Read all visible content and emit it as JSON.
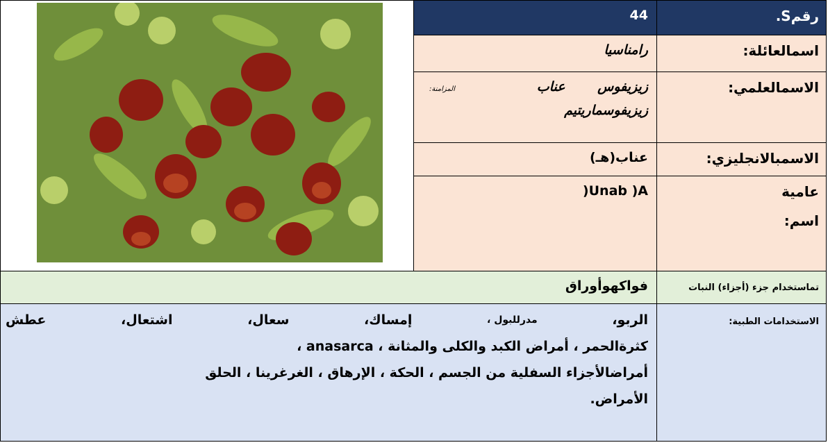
{
  "table": {
    "number_label": "رقمS.",
    "number_value": "44",
    "family_label": "اسمالعائلة:",
    "family_value": "رامناسيا",
    "scientific_label": "الاسمالعلمي:",
    "scientific_value_1": "زيزيفوس عناب",
    "synonym_label": "المزامنة:",
    "scientific_value_2": "زيزيفوسماريتيم",
    "english_label": "الاسمبالانجليزي:",
    "english_value": "عناب(هـ)",
    "common_label_1": "عامية",
    "common_label_2": "اسم:",
    "common_value": "Unab )A(",
    "parts_label": "تماستخدام جزء (أجزاء) النبات",
    "parts_value": "فواكهوأوراق",
    "uses_label": "الاستخدامات الطبية:",
    "uses_first_line": [
      "الربو،",
      "مدرللبول ،",
      "إمساك،",
      "سعال،",
      "اشتعال،",
      "عطش"
    ],
    "uses_lines": [
      "كثرةالحمر ، أمراض الكبد والكلى والمثانة ، anasarca ،",
      "أمراضالأجزاء السفلية من الجسم ، الحكة ، الإرهاق ، الغرغرينا ، الحلق",
      "الأمراض."
    ]
  }
}
